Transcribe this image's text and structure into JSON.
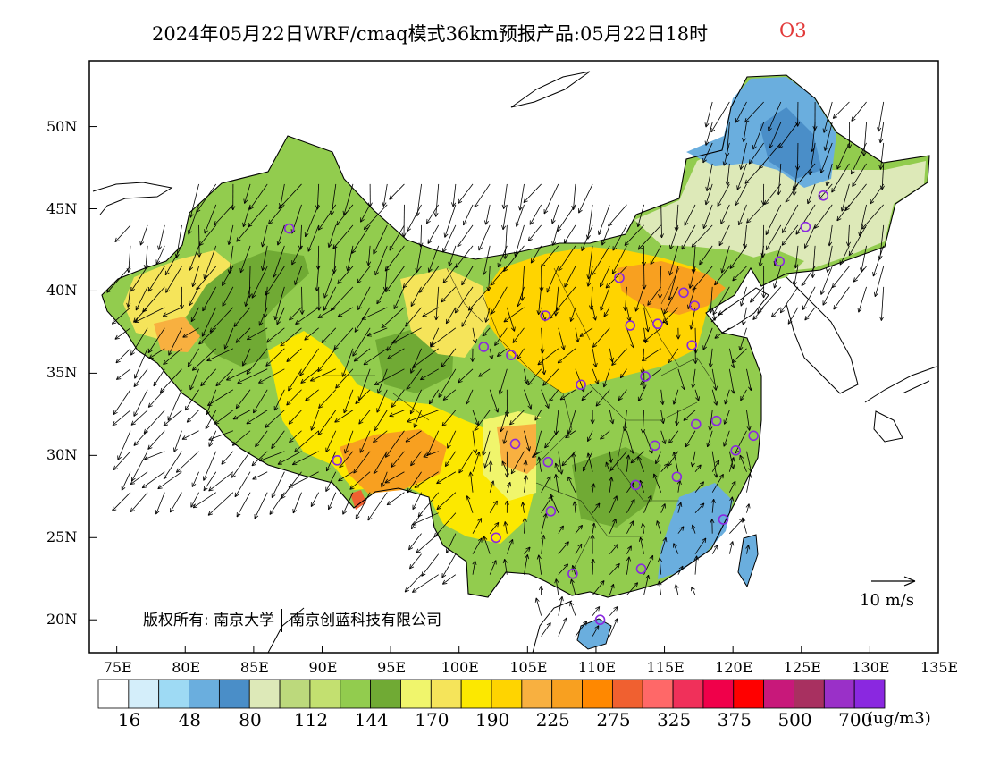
{
  "title": {
    "main": "2024年05月22日WRF/cmaq模式36km预报产品:05月22日18时",
    "species": "O3",
    "species_color": "#e23a3a"
  },
  "copyright": {
    "prefix": "版权所有: 南京大学",
    "company": "南京创蓝科技有限公司"
  },
  "wind_reference": {
    "label": "10 m/s",
    "speed_ms": 10
  },
  "colorbar": {
    "unit": "(ug/m3)",
    "colors": [
      "#ffffff",
      "#d4eefa",
      "#9edaf4",
      "#6aaede",
      "#4a8ec8",
      "#dde9b8",
      "#bcd97c",
      "#c3e070",
      "#92cc4e",
      "#70aa34",
      "#f0f56c",
      "#f5e45a",
      "#fce800",
      "#ffd400",
      "#f8b040",
      "#f8a020",
      "#ff8800",
      "#f06030",
      "#ff6868",
      "#f0305a",
      "#f0004a",
      "#ff0000",
      "#c8187a",
      "#a83060",
      "#9a30c8",
      "#8a28e0"
    ],
    "labels": [
      "16",
      "48",
      "80",
      "112",
      "144",
      "170",
      "190",
      "225",
      "275",
      "325",
      "375",
      "500",
      "700"
    ]
  },
  "axes": {
    "lat_labels": [
      "50N",
      "45N",
      "40N",
      "35N",
      "30N",
      "25N",
      "20N"
    ],
    "lat_values": [
      50,
      45,
      40,
      35,
      30,
      25,
      20
    ],
    "lon_labels": [
      "75E",
      "80E",
      "85E",
      "90E",
      "95E",
      "100E",
      "105E",
      "110E",
      "115E",
      "120E",
      "125E",
      "130E",
      "135E"
    ],
    "lon_values": [
      75,
      80,
      85,
      90,
      95,
      100,
      105,
      110,
      115,
      120,
      125,
      130,
      135
    ],
    "lon_range": [
      73,
      135
    ],
    "lat_range": [
      18,
      54
    ]
  },
  "stations": [
    {
      "lon": 87.6,
      "lat": 43.8
    },
    {
      "lon": 91.1,
      "lat": 29.7
    },
    {
      "lon": 101.8,
      "lat": 36.6
    },
    {
      "lon": 103.8,
      "lat": 36.1
    },
    {
      "lon": 104.1,
      "lat": 30.7
    },
    {
      "lon": 106.3,
      "lat": 38.5
    },
    {
      "lon": 106.5,
      "lat": 29.6
    },
    {
      "lon": 106.7,
      "lat": 26.6
    },
    {
      "lon": 102.7,
      "lat": 25.0
    },
    {
      "lon": 108.3,
      "lat": 22.8
    },
    {
      "lon": 110.3,
      "lat": 20.0
    },
    {
      "lon": 108.9,
      "lat": 34.3
    },
    {
      "lon": 111.7,
      "lat": 40.8
    },
    {
      "lon": 112.5,
      "lat": 37.9
    },
    {
      "lon": 113.6,
      "lat": 34.8
    },
    {
      "lon": 114.5,
      "lat": 38.0
    },
    {
      "lon": 116.4,
      "lat": 39.9
    },
    {
      "lon": 117.2,
      "lat": 39.1
    },
    {
      "lon": 117.0,
      "lat": 36.7
    },
    {
      "lon": 117.3,
      "lat": 31.9
    },
    {
      "lon": 118.8,
      "lat": 32.1
    },
    {
      "lon": 120.2,
      "lat": 30.3
    },
    {
      "lon": 121.5,
      "lat": 31.2
    },
    {
      "lon": 119.3,
      "lat": 26.1
    },
    {
      "lon": 115.9,
      "lat": 28.7
    },
    {
      "lon": 114.3,
      "lat": 30.6
    },
    {
      "lon": 112.9,
      "lat": 28.2
    },
    {
      "lon": 113.3,
      "lat": 23.1
    },
    {
      "lon": 123.4,
      "lat": 41.8
    },
    {
      "lon": 125.3,
      "lat": 43.9
    },
    {
      "lon": 126.6,
      "lat": 45.8
    }
  ]
}
